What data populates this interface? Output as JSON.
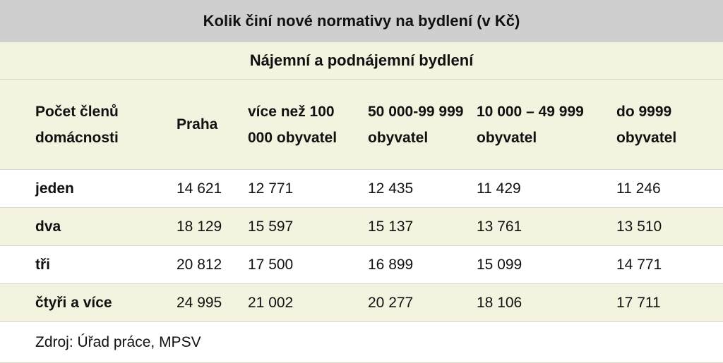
{
  "table": {
    "title": "Kolik činí nové normativy na bydlení (v Kč)",
    "subtitle": "Nájemní a podnájemní bydlení",
    "headers": [
      "Počet členů domácnosti",
      "Praha",
      "více než 100 000 obyvatel",
      "50 000-99 999 obyvatel",
      "10 000 – 49 999 obyvatel",
      "do 9999 obyvatel"
    ],
    "rows": [
      [
        "jeden",
        "14 621",
        "12 771",
        "12 435",
        "11 429",
        "11 246"
      ],
      [
        "dva",
        "18 129",
        "15 597",
        "15 137",
        "13 761",
        "13 510"
      ],
      [
        "tři",
        "20 812",
        "17 500",
        "16 899",
        "15 099",
        "14 771"
      ],
      [
        "čtyři a více",
        "24 995",
        "21 002",
        "20 277",
        "18 106",
        "17 711"
      ]
    ],
    "source": "Zdroj: Úřad práce, MPSV"
  },
  "colors": {
    "title_bg": "#cfcfcf",
    "band_bg": "#f4f3e0",
    "plain_bg": "#ffffff"
  }
}
